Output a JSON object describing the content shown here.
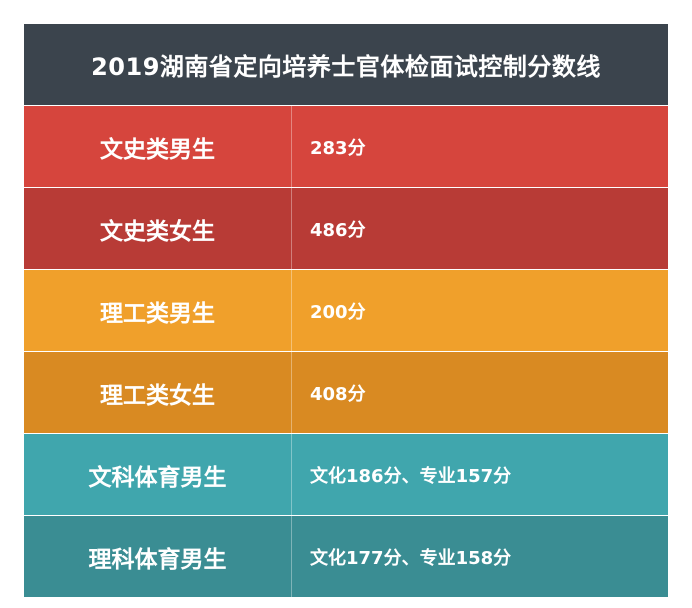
{
  "title": "2019湖南省定向培养士官体检面试控制分数线",
  "colors": {
    "header": "#3b444d",
    "row1": "#d6453d",
    "row2": "#b83b36",
    "row3": "#f0a02b",
    "row4": "#d98a22",
    "row5": "#40a6ad",
    "row6": "#3a8d93"
  },
  "rows": [
    {
      "category": "文史类男生",
      "score": "283分"
    },
    {
      "category": "文史类女生",
      "score": "486分"
    },
    {
      "category": "理工类男生",
      "score": "200分"
    },
    {
      "category": "理工类女生",
      "score": "408分"
    },
    {
      "category": "文科体育男生",
      "score": "文化186分、专业157分"
    },
    {
      "category": "理科体育男生",
      "score": "文化177分、专业158分"
    }
  ]
}
